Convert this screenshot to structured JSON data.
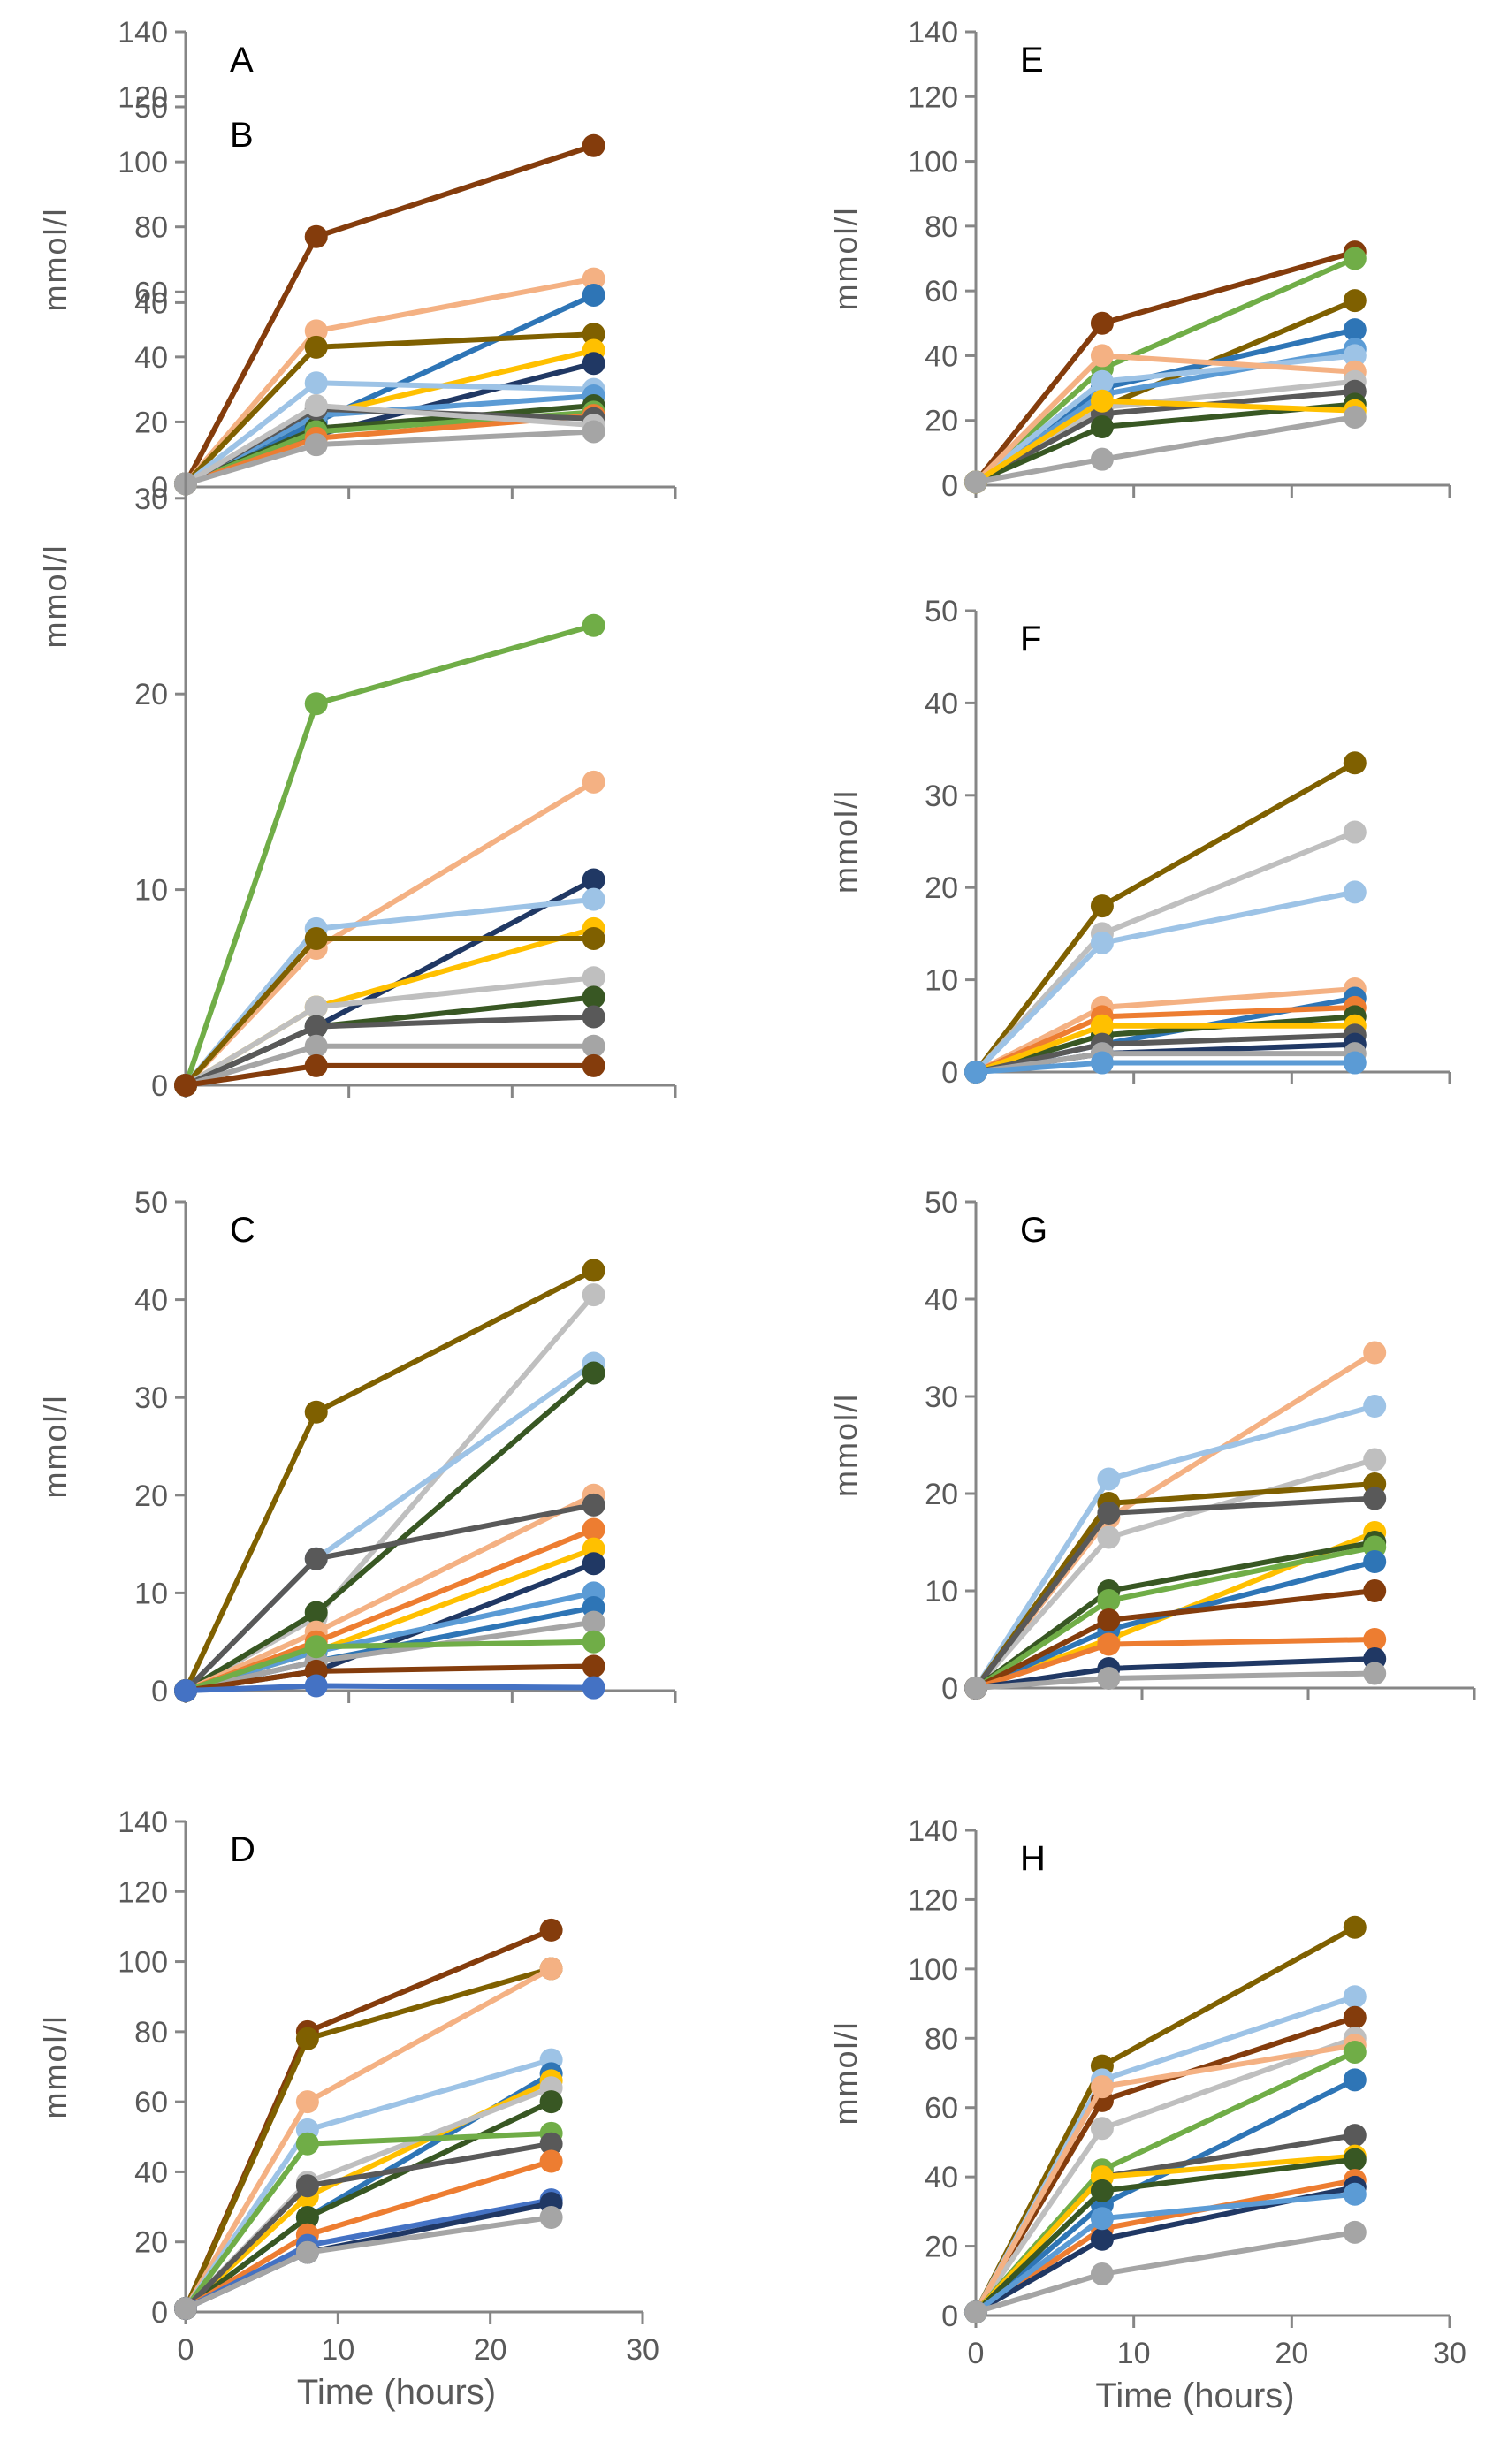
{
  "chart_data": [
    {
      "type": "line",
      "panel": "A",
      "ylabel": "mmol/l",
      "xlabel": "",
      "xlim": [
        0,
        30
      ],
      "ylim": [
        0,
        140
      ],
      "yticks": [
        0,
        20,
        40,
        60,
        80,
        100,
        120,
        140
      ],
      "xticks": [
        0,
        10,
        20,
        30
      ],
      "x": [
        0,
        8,
        25
      ],
      "series": [
        {
          "color": "#843c0c",
          "values": [
            1,
            77,
            105
          ]
        },
        {
          "color": "#f4b183",
          "values": [
            1,
            48,
            64
          ]
        },
        {
          "color": "#2e75b6",
          "values": [
            1,
            20,
            59
          ]
        },
        {
          "color": "#7f6000",
          "values": [
            1,
            43,
            47
          ]
        },
        {
          "color": "#ffc000",
          "values": [
            1,
            22,
            42
          ]
        },
        {
          "color": "#203864",
          "values": [
            1,
            16,
            38
          ]
        },
        {
          "color": "#9dc3e6",
          "values": [
            1,
            32,
            30
          ]
        },
        {
          "color": "#5b9bd5",
          "values": [
            1,
            22,
            28
          ]
        },
        {
          "color": "#385723",
          "values": [
            1,
            18,
            25
          ]
        },
        {
          "color": "#70ad47",
          "values": [
            1,
            17,
            23
          ]
        },
        {
          "color": "#ed7d31",
          "values": [
            1,
            15,
            22
          ]
        },
        {
          "color": "#595959",
          "values": [
            1,
            24,
            21
          ]
        },
        {
          "color": "#bfbfbf",
          "values": [
            1,
            25,
            19
          ]
        },
        {
          "color": "#a5a5a5",
          "values": [
            1,
            13,
            17
          ]
        }
      ]
    },
    {
      "type": "line",
      "panel": "B",
      "ylabel": "mmol/l",
      "xlabel": "",
      "xlim": [
        0,
        30
      ],
      "ylim": [
        0,
        50
      ],
      "yticks": [
        0,
        10,
        20,
        30,
        40,
        50
      ],
      "xticks": [
        0,
        10,
        20,
        30
      ],
      "x": [
        0,
        8,
        25
      ],
      "series": [
        {
          "color": "#70ad47",
          "values": [
            0,
            19.5,
            23.5
          ]
        },
        {
          "color": "#f4b183",
          "values": [
            0,
            7,
            15.5
          ]
        },
        {
          "color": "#203864",
          "values": [
            0,
            3,
            10.5
          ]
        },
        {
          "color": "#9dc3e6",
          "values": [
            0,
            8,
            9.5
          ]
        },
        {
          "color": "#ffc000",
          "values": [
            0,
            4,
            8
          ]
        },
        {
          "color": "#7f6000",
          "values": [
            0,
            7.5,
            7.5
          ]
        },
        {
          "color": "#bfbfbf",
          "values": [
            0,
            4,
            5.5
          ]
        },
        {
          "color": "#385723",
          "values": [
            0,
            3,
            4.5
          ]
        },
        {
          "color": "#595959",
          "values": [
            0,
            3,
            3.5
          ]
        },
        {
          "color": "#a5a5a5",
          "values": [
            0,
            2,
            2
          ]
        },
        {
          "color": "#843c0c",
          "values": [
            0,
            1,
            1
          ]
        }
      ]
    },
    {
      "type": "line",
      "panel": "C",
      "ylabel": "mmol/l",
      "xlabel": "",
      "xlim": [
        0,
        30
      ],
      "ylim": [
        0,
        50
      ],
      "yticks": [
        0,
        10,
        20,
        30,
        40,
        50
      ],
      "xticks": [
        0,
        10,
        20,
        30
      ],
      "x": [
        0,
        8,
        25
      ],
      "series": [
        {
          "color": "#7f6000",
          "values": [
            0,
            28.5,
            43
          ]
        },
        {
          "color": "#bfbfbf",
          "values": [
            0,
            7.5,
            40.5
          ]
        },
        {
          "color": "#9dc3e6",
          "values": [
            0,
            13.5,
            33.5
          ]
        },
        {
          "color": "#385723",
          "values": [
            0,
            8,
            32.5
          ]
        },
        {
          "color": "#f4b183",
          "values": [
            0,
            6,
            20
          ]
        },
        {
          "color": "#595959",
          "values": [
            0,
            13.5,
            19
          ]
        },
        {
          "color": "#ed7d31",
          "values": [
            0,
            5,
            16.5
          ]
        },
        {
          "color": "#ffc000",
          "values": [
            0,
            4,
            14.5
          ]
        },
        {
          "color": "#203864",
          "values": [
            0,
            2,
            13
          ]
        },
        {
          "color": "#5b9bd5",
          "values": [
            0,
            4,
            10
          ]
        },
        {
          "color": "#2e75b6",
          "values": [
            0,
            3,
            8.5
          ]
        },
        {
          "color": "#a5a5a5",
          "values": [
            0,
            3,
            7
          ]
        },
        {
          "color": "#70ad47",
          "values": [
            0,
            4.5,
            5
          ]
        },
        {
          "color": "#843c0c",
          "values": [
            0,
            2,
            2.5
          ]
        },
        {
          "color": "#4472c4",
          "values": [
            0,
            0.5,
            0.3
          ]
        }
      ]
    },
    {
      "type": "line",
      "panel": "D",
      "ylabel": "mmol/l",
      "xlabel": "Time (hours)",
      "xlim": [
        0,
        30
      ],
      "ylim": [
        0,
        140
      ],
      "yticks": [
        0,
        20,
        40,
        60,
        80,
        100,
        120,
        140
      ],
      "xticks": [
        0,
        10,
        20,
        30
      ],
      "x": [
        0,
        8,
        24
      ],
      "series": [
        {
          "color": "#843c0c",
          "values": [
            1,
            80,
            109
          ]
        },
        {
          "color": "#7f6000",
          "values": [
            1,
            78,
            98
          ]
        },
        {
          "color": "#f4b183",
          "values": [
            1,
            60,
            98
          ]
        },
        {
          "color": "#9dc3e6",
          "values": [
            1,
            52,
            72
          ]
        },
        {
          "color": "#2e75b6",
          "values": [
            1,
            27,
            68
          ]
        },
        {
          "color": "#ffc000",
          "values": [
            1,
            33,
            66
          ]
        },
        {
          "color": "#bfbfbf",
          "values": [
            1,
            37,
            64
          ]
        },
        {
          "color": "#385723",
          "values": [
            1,
            27,
            60
          ]
        },
        {
          "color": "#70ad47",
          "values": [
            1,
            48,
            51
          ]
        },
        {
          "color": "#595959",
          "values": [
            1,
            36,
            48
          ]
        },
        {
          "color": "#ed7d31",
          "values": [
            1,
            22,
            43
          ]
        },
        {
          "color": "#4472c4",
          "values": [
            1,
            19,
            32
          ]
        },
        {
          "color": "#203864",
          "values": [
            1,
            17,
            31
          ]
        },
        {
          "color": "#a5a5a5",
          "values": [
            1,
            17,
            27
          ]
        }
      ]
    },
    {
      "type": "line",
      "panel": "E",
      "ylabel": "mmol/l",
      "xlabel": "",
      "xlim": [
        0,
        30
      ],
      "ylim": [
        0,
        140
      ],
      "yticks": [
        0,
        20,
        40,
        60,
        80,
        100,
        120,
        140
      ],
      "xticks": [
        0,
        10,
        20,
        30
      ],
      "x": [
        0,
        8,
        24
      ],
      "series": [
        {
          "color": "#843c0c",
          "values": [
            1,
            50,
            72
          ]
        },
        {
          "color": "#70ad47",
          "values": [
            1,
            36,
            70
          ]
        },
        {
          "color": "#7f6000",
          "values": [
            1,
            24,
            57
          ]
        },
        {
          "color": "#2e75b6",
          "values": [
            1,
            30,
            48
          ]
        },
        {
          "color": "#5b9bd5",
          "values": [
            1,
            28,
            42
          ]
        },
        {
          "color": "#9dc3e6",
          "values": [
            1,
            32,
            40
          ]
        },
        {
          "color": "#f4b183",
          "values": [
            1,
            40,
            35
          ]
        },
        {
          "color": "#bfbfbf",
          "values": [
            1,
            24,
            32
          ]
        },
        {
          "color": "#595959",
          "values": [
            1,
            22,
            29
          ]
        },
        {
          "color": "#385723",
          "values": [
            1,
            18,
            25
          ]
        },
        {
          "color": "#ffc000",
          "values": [
            1,
            26,
            23
          ]
        },
        {
          "color": "#a5a5a5",
          "values": [
            1,
            8,
            21
          ]
        }
      ]
    },
    {
      "type": "line",
      "panel": "F",
      "ylabel": "mmol/l",
      "xlabel": "",
      "xlim": [
        0,
        30
      ],
      "ylim": [
        0,
        50
      ],
      "yticks": [
        0,
        10,
        20,
        30,
        40,
        50
      ],
      "xticks": [
        0,
        10,
        20,
        30
      ],
      "x": [
        0,
        8,
        24
      ],
      "series": [
        {
          "color": "#7f6000",
          "values": [
            0,
            18,
            33.5
          ]
        },
        {
          "color": "#bfbfbf",
          "values": [
            0,
            15,
            26
          ]
        },
        {
          "color": "#9dc3e6",
          "values": [
            0,
            14,
            19.5
          ]
        },
        {
          "color": "#f4b183",
          "values": [
            0,
            7,
            9
          ]
        },
        {
          "color": "#2e75b6",
          "values": [
            0,
            3,
            8
          ]
        },
        {
          "color": "#ed7d31",
          "values": [
            0,
            6,
            7
          ]
        },
        {
          "color": "#385723",
          "values": [
            0,
            4,
            6
          ]
        },
        {
          "color": "#ffc000",
          "values": [
            0,
            5,
            5
          ]
        },
        {
          "color": "#595959",
          "values": [
            0,
            3,
            4
          ]
        },
        {
          "color": "#203864",
          "values": [
            0,
            2,
            3
          ]
        },
        {
          "color": "#a5a5a5",
          "values": [
            0,
            2,
            2
          ]
        },
        {
          "color": "#5b9bd5",
          "values": [
            0,
            1,
            1
          ]
        }
      ]
    },
    {
      "type": "line",
      "panel": "G",
      "ylabel": "mmol/l",
      "xlabel": "",
      "xlim": [
        0,
        30
      ],
      "ylim": [
        0,
        50
      ],
      "yticks": [
        0,
        10,
        20,
        30,
        40,
        50
      ],
      "xticks": [
        0,
        10,
        20,
        30
      ],
      "x": [
        0,
        8,
        24
      ],
      "series": [
        {
          "color": "#f4b183",
          "values": [
            0,
            17.5,
            34.5
          ]
        },
        {
          "color": "#9dc3e6",
          "values": [
            0,
            21.5,
            29
          ]
        },
        {
          "color": "#bfbfbf",
          "values": [
            0,
            15.5,
            23.5
          ]
        },
        {
          "color": "#7f6000",
          "values": [
            0,
            19,
            21
          ]
        },
        {
          "color": "#595959",
          "values": [
            0,
            18,
            19.5
          ]
        },
        {
          "color": "#ffc000",
          "values": [
            0,
            5,
            16
          ]
        },
        {
          "color": "#385723",
          "values": [
            0,
            10,
            15
          ]
        },
        {
          "color": "#70ad47",
          "values": [
            0,
            9,
            14.5
          ]
        },
        {
          "color": "#2e75b6",
          "values": [
            0,
            6,
            13
          ]
        },
        {
          "color": "#843c0c",
          "values": [
            0,
            7,
            10
          ]
        },
        {
          "color": "#ed7d31",
          "values": [
            0,
            4.5,
            5
          ]
        },
        {
          "color": "#203864",
          "values": [
            0,
            2,
            3
          ]
        },
        {
          "color": "#a5a5a5",
          "values": [
            0,
            1,
            1.5
          ]
        }
      ]
    },
    {
      "type": "line",
      "panel": "H",
      "ylabel": "mmol/l",
      "xlabel": "Time (hours)",
      "xlim": [
        0,
        30
      ],
      "ylim": [
        0,
        140
      ],
      "yticks": [
        0,
        20,
        40,
        60,
        80,
        100,
        120,
        140
      ],
      "xticks": [
        0,
        10,
        20,
        30
      ],
      "x": [
        0,
        8,
        24
      ],
      "series": [
        {
          "color": "#7f6000",
          "values": [
            1,
            72,
            112
          ]
        },
        {
          "color": "#9dc3e6",
          "values": [
            1,
            68,
            92
          ]
        },
        {
          "color": "#843c0c",
          "values": [
            1,
            62,
            86
          ]
        },
        {
          "color": "#bfbfbf",
          "values": [
            1,
            54,
            80
          ]
        },
        {
          "color": "#f4b183",
          "values": [
            1,
            66,
            78
          ]
        },
        {
          "color": "#70ad47",
          "values": [
            1,
            42,
            76
          ]
        },
        {
          "color": "#2e75b6",
          "values": [
            1,
            32,
            68
          ]
        },
        {
          "color": "#595959",
          "values": [
            1,
            40,
            52
          ]
        },
        {
          "color": "#ffc000",
          "values": [
            1,
            40,
            46
          ]
        },
        {
          "color": "#385723",
          "values": [
            1,
            36,
            45
          ]
        },
        {
          "color": "#ed7d31",
          "values": [
            1,
            25,
            39
          ]
        },
        {
          "color": "#203864",
          "values": [
            1,
            22,
            37
          ]
        },
        {
          "color": "#5b9bd5",
          "values": [
            1,
            28,
            35
          ]
        },
        {
          "color": "#a5a5a5",
          "values": [
            1,
            12,
            24
          ]
        }
      ]
    }
  ]
}
